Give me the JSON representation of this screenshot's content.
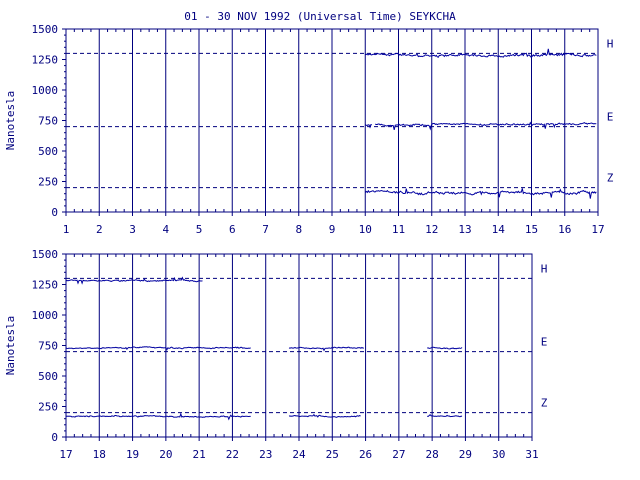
{
  "title": "01 - 30 NOV 1992 (Universal Time) SEYKCHA",
  "colors": {
    "axis": "#00007f",
    "trace": "#0000a0",
    "background": "#ffffff"
  },
  "chart_data": [
    {
      "type": "line",
      "ylabel": "Nanotesla",
      "ylim": [
        0,
        1500
      ],
      "yticks": [
        "0",
        "250",
        "500",
        "750",
        "1000",
        "1250",
        "1500"
      ],
      "xlim": [
        1,
        17
      ],
      "xticks": [
        "1",
        "2",
        "3",
        "4",
        "5",
        "6",
        "7",
        "8",
        "9",
        "10",
        "11",
        "12",
        "13",
        "14",
        "15",
        "16",
        "17"
      ],
      "baselines": [
        {
          "name": "H",
          "value": 1300
        },
        {
          "name": "E",
          "value": 700
        },
        {
          "name": "Z",
          "value": 200
        }
      ],
      "series": [
        {
          "name": "H",
          "segments": [
            [
              10.0,
              16.95
            ]
          ],
          "level": 1285,
          "noise": 20
        },
        {
          "name": "E",
          "segments": [
            [
              10.0,
              10.2
            ],
            [
              10.3,
              16.95
            ]
          ],
          "level": 720,
          "noise": 15
        },
        {
          "name": "Z",
          "segments": [
            [
              10.0,
              16.95
            ]
          ],
          "level": 160,
          "noise": 20
        }
      ]
    },
    {
      "type": "line",
      "ylabel": "Nanotesla",
      "ylim": [
        0,
        1500
      ],
      "yticks": [
        "0",
        "250",
        "500",
        "750",
        "1000",
        "1250",
        "1500"
      ],
      "xlim": [
        17,
        31
      ],
      "xticks": [
        "17",
        "18",
        "19",
        "20",
        "21",
        "22",
        "23",
        "24",
        "25",
        "26",
        "27",
        "28",
        "29",
        "30",
        "31"
      ],
      "baselines": [
        {
          "name": "H",
          "value": 1300
        },
        {
          "name": "E",
          "value": 700
        },
        {
          "name": "Z",
          "value": 200
        }
      ],
      "series": [
        {
          "name": "H",
          "segments": [
            [
              17.0,
              21.1
            ]
          ],
          "level": 1280,
          "noise": 10
        },
        {
          "name": "E",
          "segments": [
            [
              17.0,
              22.55
            ],
            [
              23.7,
              25.95
            ],
            [
              27.85,
              28.9
            ]
          ],
          "level": 730,
          "noise": 10
        },
        {
          "name": "Z",
          "segments": [
            [
              17.0,
              22.55
            ],
            [
              23.7,
              25.85
            ],
            [
              27.85,
              28.9
            ]
          ],
          "level": 170,
          "noise": 10
        }
      ]
    }
  ]
}
